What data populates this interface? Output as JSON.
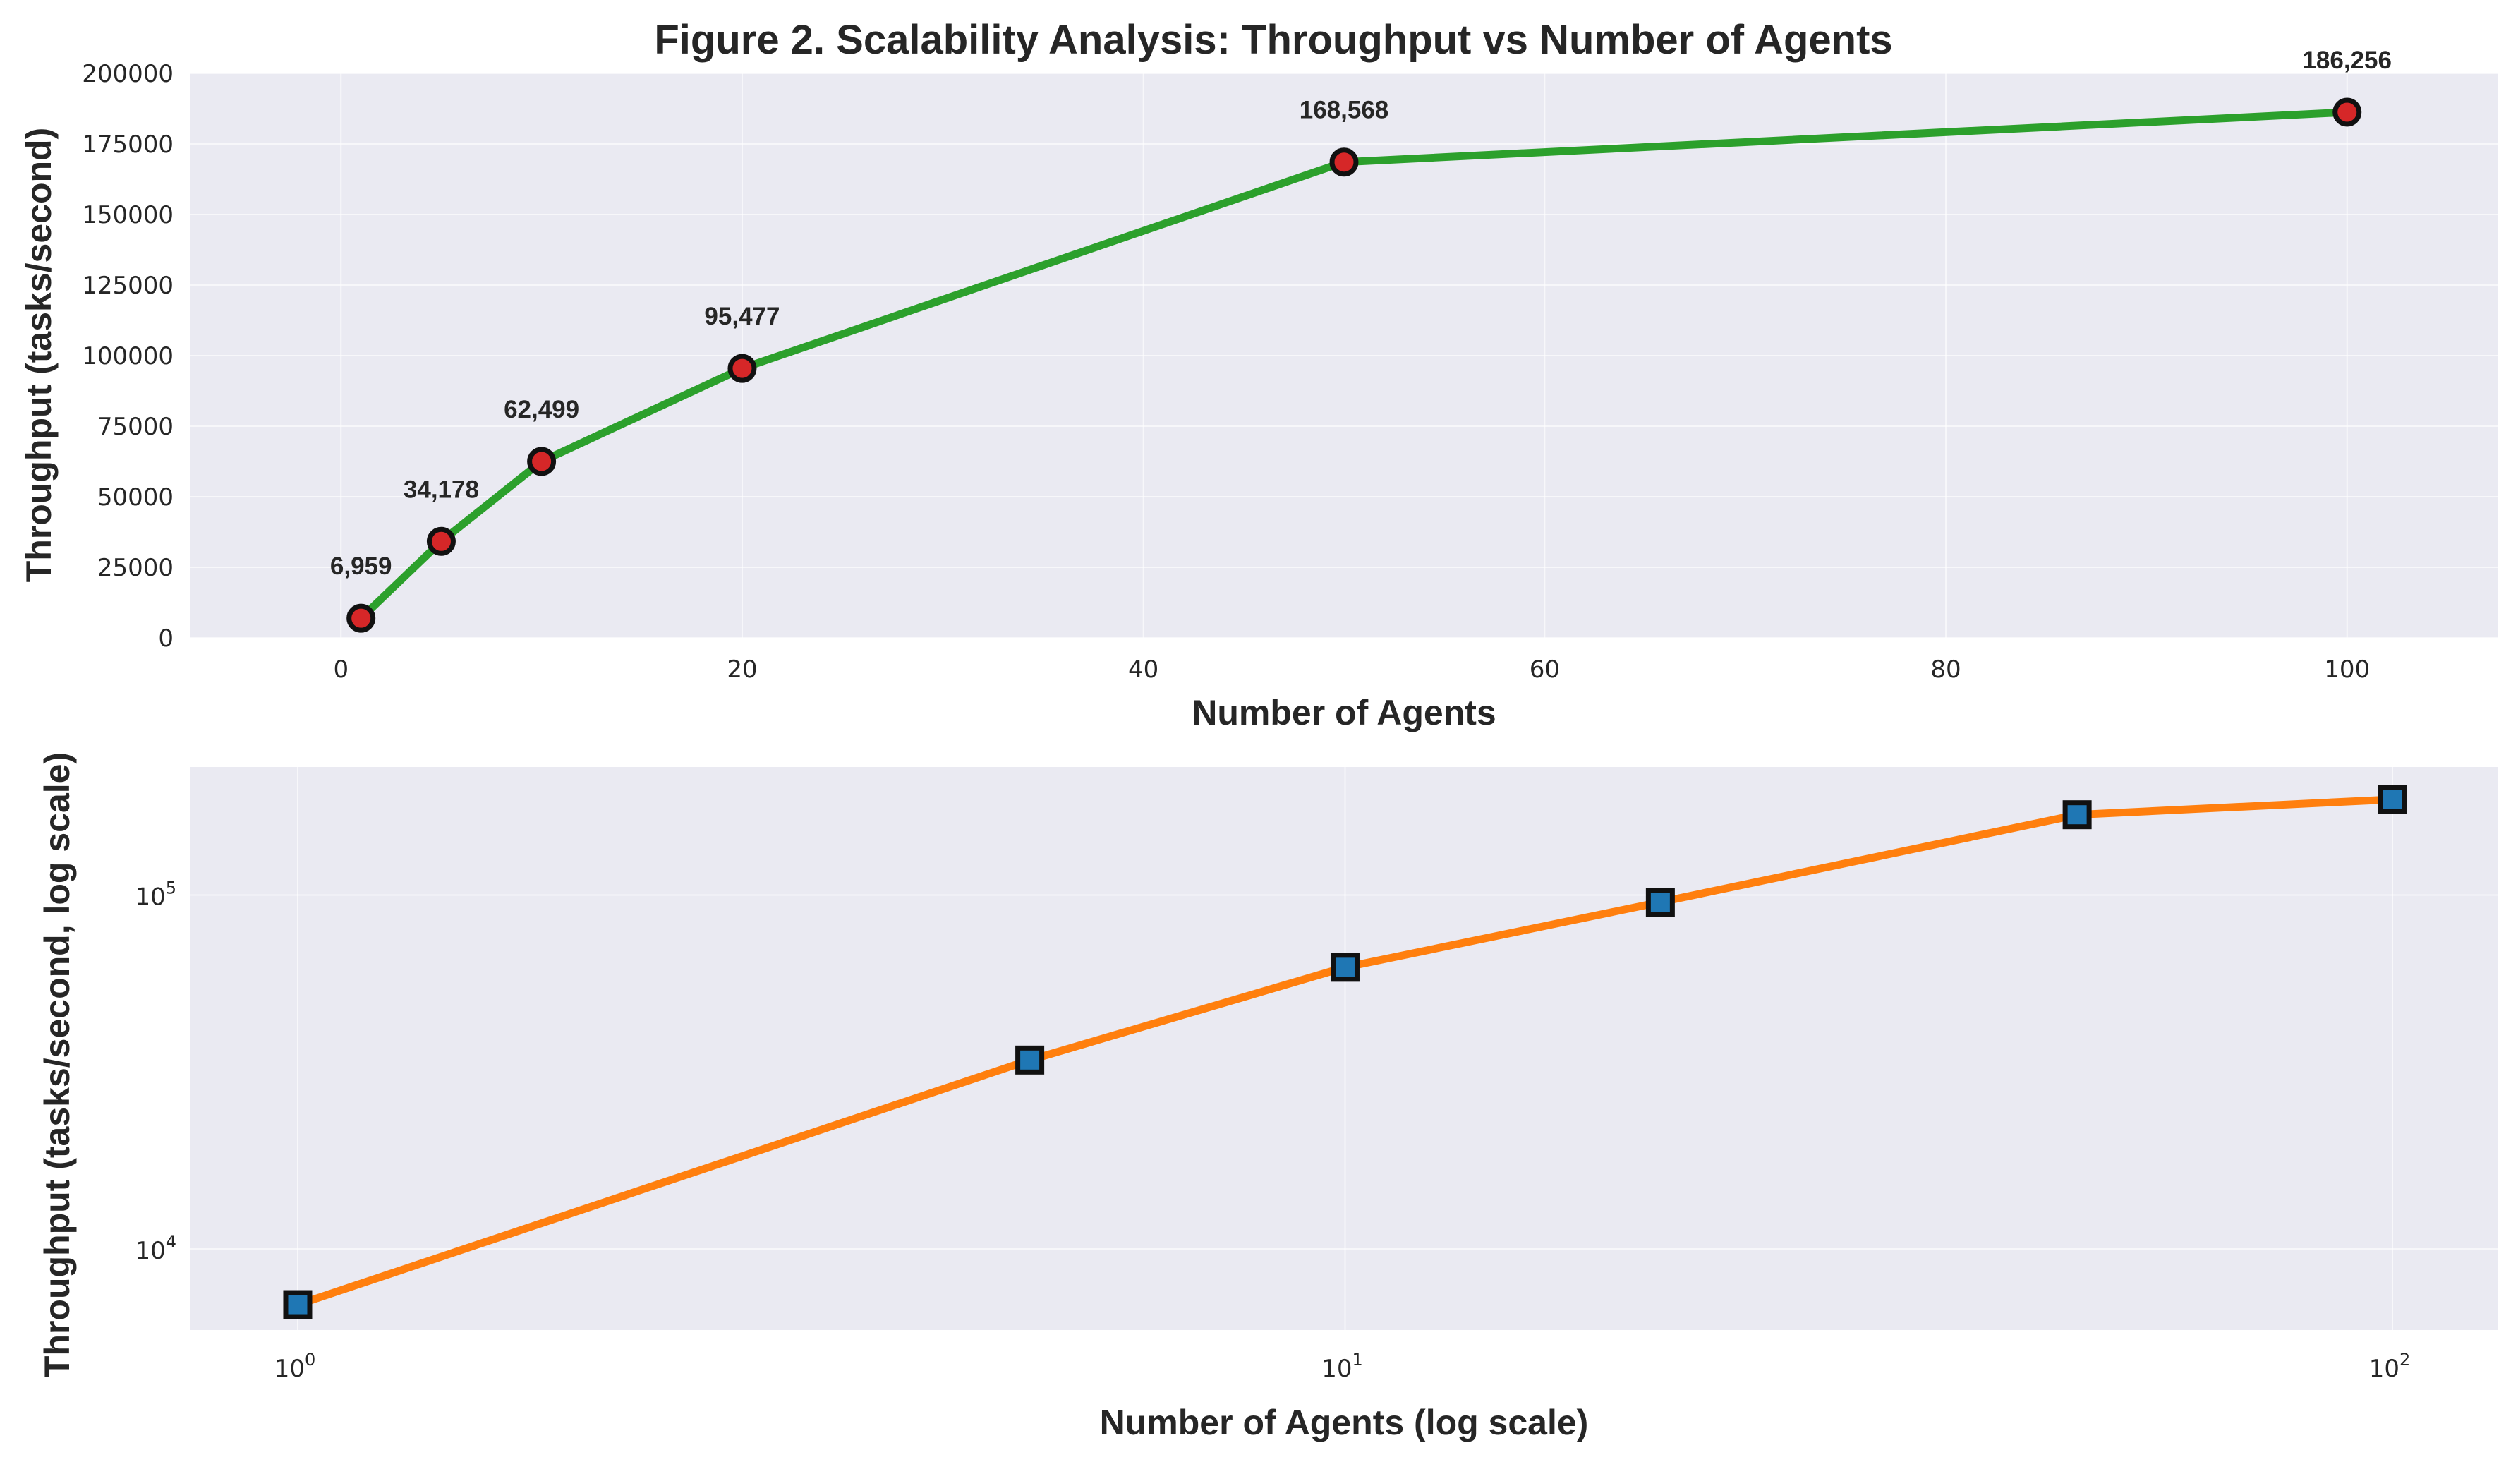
{
  "colors": {
    "plot_background": "#eaeaf2",
    "grid": "#ffffff",
    "top_line": "#2ca02c",
    "top_marker_fill": "#d62728",
    "bottom_line": "#ff7f0e",
    "bottom_marker_fill": "#1f77b4",
    "marker_edge": "#111111",
    "text": "#262626"
  },
  "chart_data": [
    {
      "type": "line",
      "title": "Figure 2. Scalability Analysis: Throughput vs Number of Agents",
      "xlabel": "Number of Agents",
      "ylabel": "Throughput (tasks/second)",
      "x": [
        1,
        5,
        10,
        20,
        50,
        100
      ],
      "values": [
        6959,
        34178,
        62499,
        95477,
        168568,
        186256
      ],
      "data_labels": [
        "6,959",
        "34,178",
        "62,499",
        "95,477",
        "168,568",
        "186,256"
      ],
      "xlim": [
        -7.5,
        107.5
      ],
      "ylim": [
        0,
        200000
      ],
      "xticks": [
        0,
        20,
        40,
        60,
        80,
        100
      ],
      "xtick_labels": [
        "0",
        "20",
        "40",
        "60",
        "80",
        "100"
      ],
      "yticks": [
        0,
        25000,
        50000,
        75000,
        100000,
        125000,
        150000,
        175000,
        200000
      ],
      "ytick_labels": [
        "0",
        "25000",
        "50000",
        "75000",
        "100000",
        "125000",
        "150000",
        "175000",
        "200000"
      ],
      "marker": "circle",
      "grid": true
    },
    {
      "type": "line",
      "xlabel": "Number of Agents (log scale)",
      "ylabel": "Throughput (tasks/second, log scale)",
      "x": [
        1,
        5,
        10,
        20,
        50,
        100
      ],
      "values": [
        6959,
        34178,
        62499,
        95477,
        168568,
        186256
      ],
      "xscale": "log",
      "yscale": "log",
      "xlim": [
        0.79,
        126
      ],
      "ylim": [
        5900,
        230000
      ],
      "xticks": [
        1,
        10,
        100
      ],
      "xtick_labels": [
        {
          "base": "10",
          "exp": "0"
        },
        {
          "base": "10",
          "exp": "1"
        },
        {
          "base": "10",
          "exp": "2"
        }
      ],
      "yticks": [
        10000,
        100000
      ],
      "ytick_labels": [
        {
          "base": "10",
          "exp": "4"
        },
        {
          "base": "10",
          "exp": "5"
        }
      ],
      "marker": "square",
      "grid": true
    }
  ]
}
